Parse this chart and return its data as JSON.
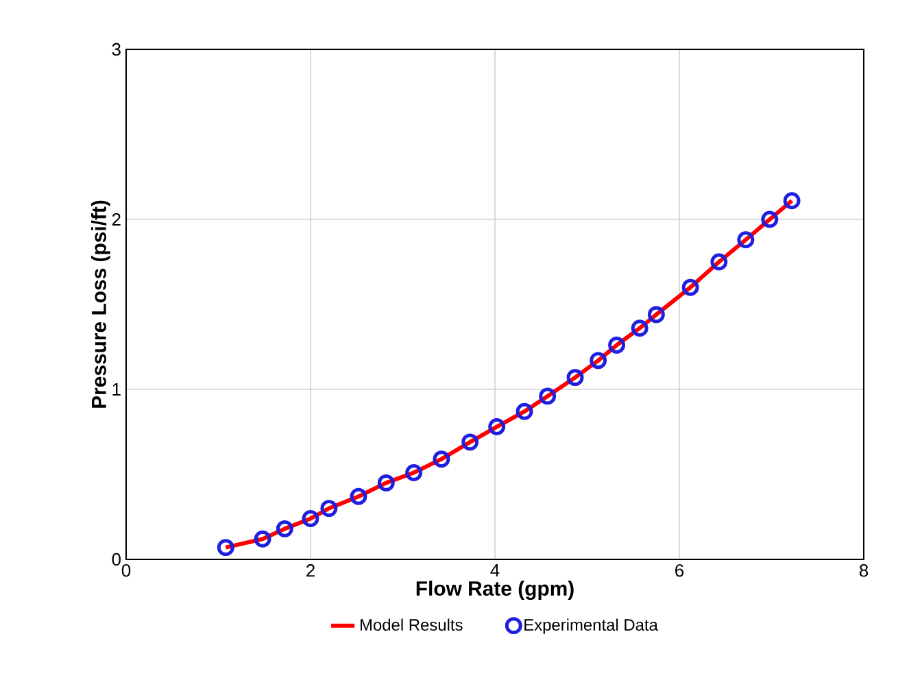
{
  "chart_data": {
    "type": "line",
    "xlabel": "Flow Rate (gpm)",
    "ylabel": "Pressure Loss (psi/ft)",
    "xlim": [
      0,
      8
    ],
    "ylim": [
      0,
      3
    ],
    "xticks": [
      0,
      2,
      4,
      6,
      8
    ],
    "yticks": [
      0,
      1,
      2,
      3
    ],
    "grid": true,
    "legend": "bottom",
    "x": [
      1.08,
      1.48,
      1.72,
      2.0,
      2.2,
      2.52,
      2.82,
      3.12,
      3.42,
      3.73,
      4.02,
      4.32,
      4.57,
      4.87,
      5.12,
      5.32,
      5.57,
      5.75,
      6.12,
      6.43,
      6.72,
      6.98,
      7.22
    ],
    "series": [
      {
        "name": "Model Results",
        "color": "#ff0000",
        "values": [
          0.07,
          0.12,
          0.18,
          0.24,
          0.3,
          0.37,
          0.45,
          0.51,
          0.59,
          0.69,
          0.78,
          0.87,
          0.96,
          1.07,
          1.17,
          1.26,
          1.36,
          1.44,
          1.6,
          1.75,
          1.88,
          2.0,
          2.11
        ]
      },
      {
        "name": "Experimental Data",
        "type": "scatter",
        "marker": "circle",
        "color": "#1f1fe0",
        "values": [
          0.07,
          0.12,
          0.18,
          0.24,
          0.3,
          0.37,
          0.45,
          0.51,
          0.59,
          0.69,
          0.78,
          0.87,
          0.96,
          1.07,
          1.17,
          1.26,
          1.36,
          1.44,
          1.6,
          1.75,
          1.88,
          2.0,
          2.11
        ]
      }
    ]
  }
}
